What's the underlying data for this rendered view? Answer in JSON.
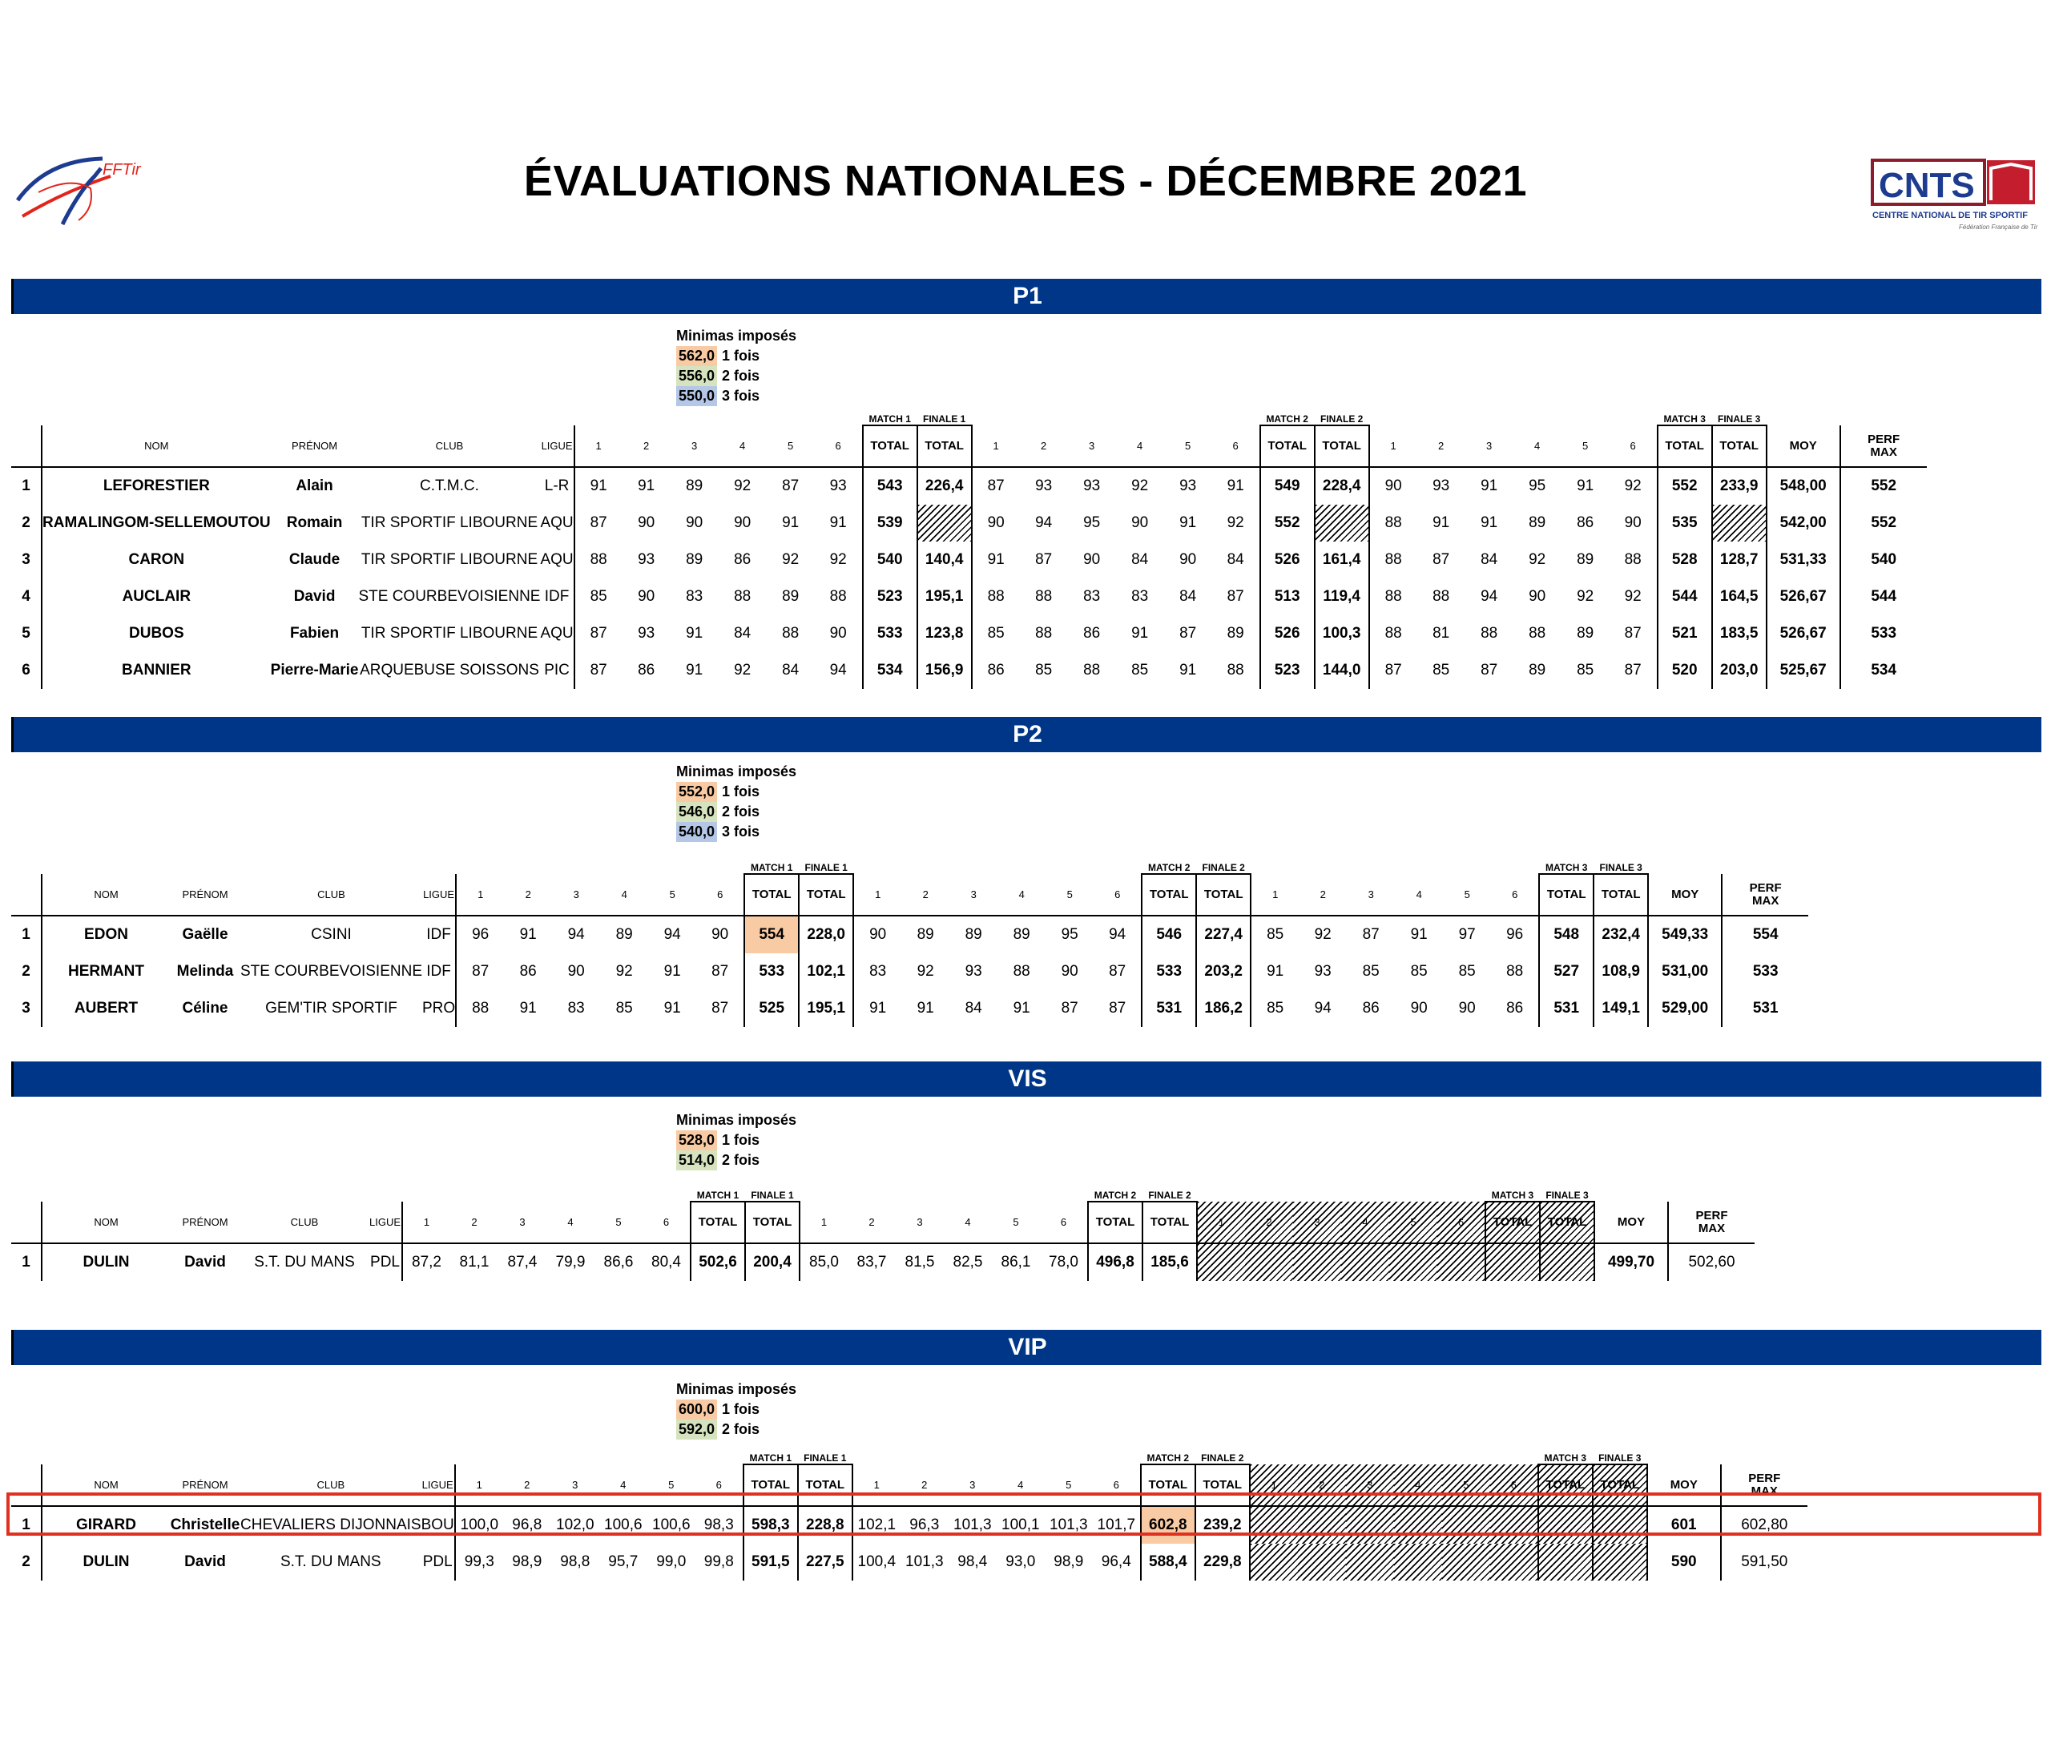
{
  "title": "ÉVALUATIONS NATIONALES - DÉCEMBRE 2021",
  "logos": {
    "left": "FFTir",
    "right_main": "CNTS",
    "right_sub": "CENTRE NATIONAL DE TIR SPORTIF",
    "right_tag": "Fédération Française de Tir"
  },
  "colors": {
    "banner": "#003687",
    "min1": "#f8cba4",
    "min2": "#d5e3bf",
    "min3": "#b4c7e7",
    "highlight_box": "#e03020"
  },
  "headers": {
    "nom": "NOM",
    "prenom": "PRÉNOM",
    "club": "CLUB",
    "ligue": "LIGUE",
    "series": [
      "1",
      "2",
      "3",
      "4",
      "5",
      "6"
    ],
    "total": "TOTAL",
    "moy": "MOY",
    "perf": "PERF",
    "max": "MAX",
    "match1": "MATCH 1",
    "finale1": "FINALE 1",
    "match2": "MATCH 2",
    "finale2": "FINALE 2",
    "match3": "MATCH 3",
    "finale3": "FINALE 3"
  },
  "minimas_title": "Minimas imposés",
  "sections": [
    {
      "name": "P1",
      "minimas": [
        {
          "value": "562,0",
          "label": "1 fois"
        },
        {
          "value": "556,0",
          "label": "2 fois"
        },
        {
          "value": "550,0",
          "label": "3 fois"
        }
      ],
      "rows": [
        {
          "rank": "1",
          "nom": "LEFORESTIER",
          "prenom": "Alain",
          "club": "C.T.M.C.",
          "ligue": "L-R",
          "m1": [
            "91",
            "91",
            "89",
            "92",
            "87",
            "93"
          ],
          "t1": "543",
          "f1": "226,4",
          "m2": [
            "87",
            "93",
            "93",
            "92",
            "93",
            "91"
          ],
          "t2": "549",
          "f2": "228,4",
          "m3": [
            "90",
            "93",
            "91",
            "95",
            "91",
            "92"
          ],
          "t3": "552",
          "f3": "233,9",
          "moy": "548,00",
          "perf": "552"
        },
        {
          "rank": "2",
          "nom": "RAMALINGOM-SELLEMOUTOU",
          "prenom": "Romain",
          "club": "TIR SPORTIF LIBOURNE",
          "ligue": "AQU",
          "m1": [
            "87",
            "90",
            "90",
            "90",
            "91",
            "91"
          ],
          "t1": "539",
          "f1": "",
          "m2": [
            "90",
            "94",
            "95",
            "90",
            "91",
            "92"
          ],
          "t2": "552",
          "f2": "",
          "m3": [
            "88",
            "91",
            "91",
            "89",
            "86",
            "90"
          ],
          "t3": "535",
          "f3": "",
          "moy": "542,00",
          "perf": "552"
        },
        {
          "rank": "3",
          "nom": "CARON",
          "prenom": "Claude",
          "club": "TIR SPORTIF LIBOURNE",
          "ligue": "AQU",
          "m1": [
            "88",
            "93",
            "89",
            "86",
            "92",
            "92"
          ],
          "t1": "540",
          "f1": "140,4",
          "m2": [
            "91",
            "87",
            "90",
            "84",
            "90",
            "84"
          ],
          "t2": "526",
          "f2": "161,4",
          "m3": [
            "88",
            "87",
            "84",
            "92",
            "89",
            "88"
          ],
          "t3": "528",
          "f3": "128,7",
          "moy": "531,33",
          "perf": "540"
        },
        {
          "rank": "4",
          "nom": "AUCLAIR",
          "prenom": "David",
          "club": "STE COURBEVOISIENNE",
          "ligue": "IDF",
          "m1": [
            "85",
            "90",
            "83",
            "88",
            "89",
            "88"
          ],
          "t1": "523",
          "f1": "195,1",
          "m2": [
            "88",
            "88",
            "83",
            "83",
            "84",
            "87"
          ],
          "t2": "513",
          "f2": "119,4",
          "m3": [
            "88",
            "88",
            "94",
            "90",
            "92",
            "92"
          ],
          "t3": "544",
          "f3": "164,5",
          "moy": "526,67",
          "perf": "544"
        },
        {
          "rank": "5",
          "nom": "DUBOS",
          "prenom": "Fabien",
          "club": "TIR SPORTIF LIBOURNE",
          "ligue": "AQU",
          "m1": [
            "87",
            "93",
            "91",
            "84",
            "88",
            "90"
          ],
          "t1": "533",
          "f1": "123,8",
          "m2": [
            "85",
            "88",
            "86",
            "91",
            "87",
            "89"
          ],
          "t2": "526",
          "f2": "100,3",
          "m3": [
            "88",
            "81",
            "88",
            "88",
            "89",
            "87"
          ],
          "t3": "521",
          "f3": "183,5",
          "moy": "526,67",
          "perf": "533"
        },
        {
          "rank": "6",
          "nom": "BANNIER",
          "prenom": "Pierre-Marie",
          "club": "ARQUEBUSE SOISSONS",
          "ligue": "PIC",
          "m1": [
            "87",
            "86",
            "91",
            "92",
            "84",
            "94"
          ],
          "t1": "534",
          "f1": "156,9",
          "m2": [
            "86",
            "85",
            "88",
            "85",
            "91",
            "88"
          ],
          "t2": "523",
          "f2": "144,0",
          "m3": [
            "87",
            "85",
            "87",
            "89",
            "85",
            "87"
          ],
          "t3": "520",
          "f3": "203,0",
          "moy": "525,67",
          "perf": "534"
        }
      ]
    },
    {
      "name": "P2",
      "minimas": [
        {
          "value": "552,0",
          "label": "1 fois"
        },
        {
          "value": "546,0",
          "label": "2 fois"
        },
        {
          "value": "540,0",
          "label": "3 fois"
        }
      ],
      "rows": [
        {
          "rank": "1",
          "nom": "EDON",
          "prenom": "Gaëlle",
          "club": "CSINI",
          "ligue": "IDF",
          "m1": [
            "96",
            "91",
            "94",
            "89",
            "94",
            "90"
          ],
          "t1": "554",
          "f1": "228,0",
          "m2": [
            "90",
            "89",
            "89",
            "89",
            "95",
            "94"
          ],
          "t2": "546",
          "f2": "227,4",
          "m3": [
            "85",
            "92",
            "87",
            "91",
            "97",
            "96"
          ],
          "t3": "548",
          "f3": "232,4",
          "moy": "549,33",
          "perf": "554"
        },
        {
          "rank": "2",
          "nom": "HERMANT",
          "prenom": "Melinda",
          "club": "STE COURBEVOISIENNE",
          "ligue": "IDF",
          "m1": [
            "87",
            "86",
            "90",
            "92",
            "91",
            "87"
          ],
          "t1": "533",
          "f1": "102,1",
          "m2": [
            "83",
            "92",
            "93",
            "88",
            "90",
            "87"
          ],
          "t2": "533",
          "f2": "203,2",
          "m3": [
            "91",
            "93",
            "85",
            "85",
            "85",
            "88"
          ],
          "t3": "527",
          "f3": "108,9",
          "moy": "531,00",
          "perf": "533"
        },
        {
          "rank": "3",
          "nom": "AUBERT",
          "prenom": "Céline",
          "club": "GEM'TIR SPORTIF",
          "ligue": "PRO",
          "m1": [
            "88",
            "91",
            "83",
            "85",
            "91",
            "87"
          ],
          "t1": "525",
          "f1": "195,1",
          "m2": [
            "91",
            "91",
            "84",
            "91",
            "87",
            "87"
          ],
          "t2": "531",
          "f2": "186,2",
          "m3": [
            "85",
            "94",
            "86",
            "90",
            "90",
            "86"
          ],
          "t3": "531",
          "f3": "149,1",
          "moy": "529,00",
          "perf": "531"
        }
      ]
    },
    {
      "name": "VIS",
      "minimas": [
        {
          "value": "528,0",
          "label": "1 fois"
        },
        {
          "value": "514,0",
          "label": "2 fois"
        }
      ],
      "rows": [
        {
          "rank": "1",
          "nom": "DULIN",
          "prenom": "David",
          "club": "S.T. DU MANS",
          "ligue": "PDL",
          "m1": [
            "87,2",
            "81,1",
            "87,4",
            "79,9",
            "86,6",
            "80,4"
          ],
          "t1": "502,6",
          "f1": "200,4",
          "m2": [
            "85,0",
            "83,7",
            "81,5",
            "82,5",
            "86,1",
            "78,0"
          ],
          "t2": "496,8",
          "f2": "185,6",
          "moy": "499,70",
          "perf": "502,60"
        }
      ]
    },
    {
      "name": "VIP",
      "minimas": [
        {
          "value": "600,0",
          "label": "1 fois"
        },
        {
          "value": "592,0",
          "label": "2 fois"
        }
      ],
      "rows": [
        {
          "rank": "1",
          "nom": "GIRARD",
          "prenom": "Christelle",
          "club": "CHEVALIERS DIJONNAIS",
          "ligue": "BOU",
          "m1": [
            "100,0",
            "96,8",
            "102,0",
            "100,6",
            "100,6",
            "98,3"
          ],
          "t1": "598,3",
          "f1": "228,8",
          "m2": [
            "102,1",
            "96,3",
            "101,3",
            "100,1",
            "101,3",
            "101,7"
          ],
          "t2": "602,8",
          "f2": "239,2",
          "moy": "601",
          "perf": "602,80"
        },
        {
          "rank": "2",
          "nom": "DULIN",
          "prenom": "David",
          "club": "S.T. DU MANS",
          "ligue": "PDL",
          "m1": [
            "99,3",
            "98,9",
            "98,8",
            "95,7",
            "99,0",
            "99,8"
          ],
          "t1": "591,5",
          "f1": "227,5",
          "m2": [
            "100,4",
            "101,3",
            "98,4",
            "93,0",
            "98,9",
            "96,4"
          ],
          "t2": "588,4",
          "f2": "229,8",
          "moy": "590",
          "perf": "591,50"
        }
      ]
    }
  ]
}
